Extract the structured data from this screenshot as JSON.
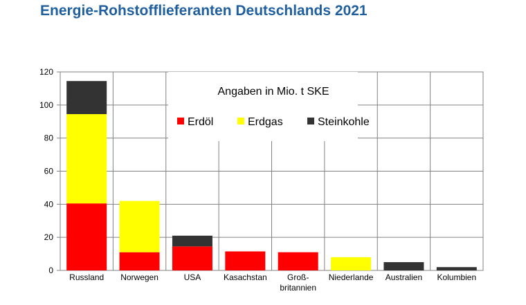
{
  "page": {
    "title": "Energie-Rohstofflieferanten Deutschlands 2021"
  },
  "chart_data": {
    "type": "bar",
    "stacked": true,
    "annotation": "Angaben in Mio. t SKE",
    "categories": [
      "Russland",
      "Norwegen",
      "USA",
      "Kasachstan",
      "Groß-\nbritannien",
      "Niederlande",
      "Australien",
      "Kolumbien"
    ],
    "series": [
      {
        "name": "Erdöl",
        "color": "#ff0000",
        "values": [
          40.5,
          11,
          14.5,
          11.5,
          11,
          0,
          0,
          0
        ]
      },
      {
        "name": "Erdgas",
        "color": "#ffff00",
        "values": [
          54,
          31,
          0,
          0,
          0,
          8,
          0,
          0
        ]
      },
      {
        "name": "Steinkohle",
        "color": "#333333",
        "values": [
          20,
          0,
          6.5,
          0,
          0,
          0,
          5,
          2
        ]
      }
    ],
    "ylim": [
      0,
      120
    ],
    "yticks": [
      0,
      20,
      40,
      60,
      80,
      100,
      120
    ],
    "grid": true,
    "legend_position": "top-center"
  }
}
